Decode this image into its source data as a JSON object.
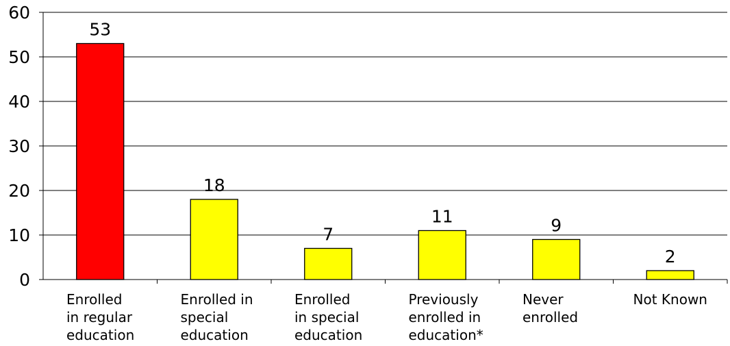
{
  "chart_data": {
    "type": "bar",
    "title": "",
    "xlabel": "",
    "ylabel": "",
    "ylim": [
      0,
      60
    ],
    "yticks": [
      0,
      10,
      20,
      30,
      40,
      50,
      60
    ],
    "grid": true,
    "categories": [
      "Enrolled\nin regular\neducation",
      "Enrolled in\nspecial\neducation",
      "Enrolled\nin special\neducation",
      "Previously\nenrolled in\neducation*",
      "Never\nenrolled",
      "Not Known"
    ],
    "values": [
      53,
      18,
      7,
      11,
      9,
      2
    ],
    "value_labels": [
      "53",
      "18",
      "7",
      "11",
      "9",
      "2"
    ],
    "ytick_labels": [
      "0",
      "10",
      "20",
      "30",
      "40",
      "50",
      "60"
    ],
    "colors": [
      "#ff0000",
      "#ffff00",
      "#ffff00",
      "#ffff00",
      "#ffff00",
      "#ffff00"
    ]
  }
}
